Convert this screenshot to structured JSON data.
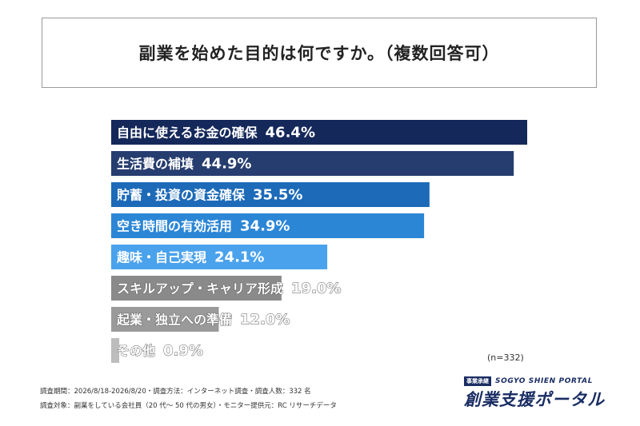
{
  "title": "副業を始めた目的は何ですか。（複数回答可）",
  "sample_note": "(n=332)",
  "footer": {
    "line1": "調査期間：2026/8/18-2026/8/20・調査方法：インターネット調査・調査人数：332 名",
    "line2": "調査対象：副業をしている会社員（20 代〜 50 代の男女）・モニター提供元：RC リサーチデータ"
  },
  "logo": {
    "badge": "事業承継",
    "en": "SOGYO SHIEN PORTAL",
    "main": "創業支援ポータル"
  },
  "colors": {
    "navy": "#15285a",
    "dark_blue": "#263d6f",
    "blue": "#1c6ab8",
    "mid_blue": "#2b86d6",
    "light_blue": "#4aa2ec",
    "gray": "#8a8a8a",
    "light_gray": "#bdbdbd"
  },
  "chart_data": {
    "type": "bar",
    "orientation": "horizontal",
    "categories": [
      "自由に使えるお金の確保",
      "生活費の補填",
      "貯蓄・投資の資金確保",
      "空き時間の有効活用",
      "趣味・自己実現",
      "スキルアップ・キャリア形成",
      "起業・独立への準備",
      "その他"
    ],
    "values": [
      46.4,
      44.9,
      35.5,
      34.9,
      24.1,
      19.0,
      12.0,
      0.9
    ],
    "value_labels": [
      "46.4%",
      "44.9%",
      "35.5%",
      "34.9%",
      "24.1%",
      "19.0%",
      "12.0%",
      "0.9%"
    ],
    "bar_colors": [
      "#15285a",
      "#263d6f",
      "#1c6ab8",
      "#2b86d6",
      "#4aa2ec",
      "#8a8a8a",
      "#9a9a9a",
      "#bdbdbd"
    ],
    "value_unit": "%"
  }
}
